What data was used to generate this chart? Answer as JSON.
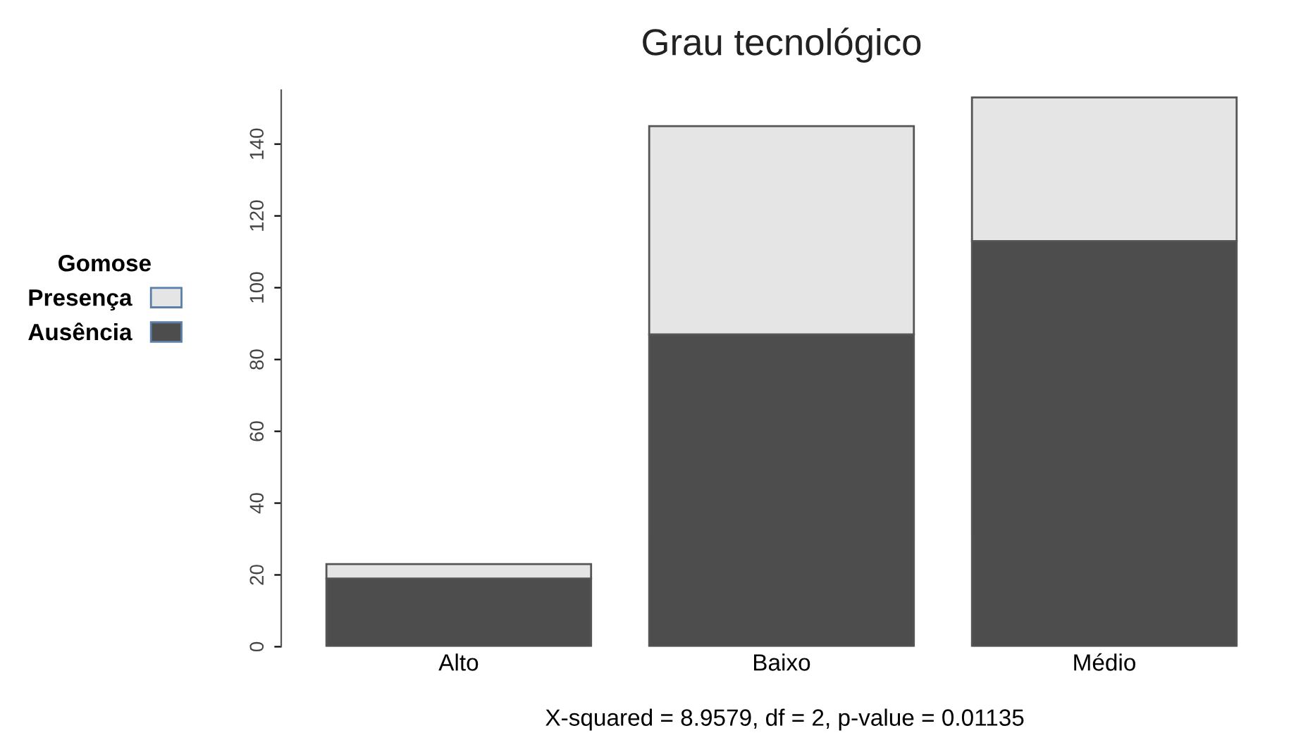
{
  "chart_data": {
    "type": "bar",
    "title": "Grau tecnológico",
    "categories": [
      "Alto",
      "Baixo",
      "Médio"
    ],
    "stacked": true,
    "series": [
      {
        "name": "Ausência",
        "color": "#4d4d4d",
        "values": [
          19,
          87,
          113
        ]
      },
      {
        "name": "Presença",
        "color": "#e5e5e5",
        "values": [
          4,
          58,
          40
        ]
      }
    ],
    "legend_title": "Gomose",
    "legend": "left",
    "ylim": [
      0,
      155
    ],
    "yticks": [
      0,
      20,
      40,
      60,
      80,
      100,
      120,
      140
    ],
    "annotations": [
      "X-squared = 8.9579, df = 2, p-value = 0.01135"
    ]
  }
}
